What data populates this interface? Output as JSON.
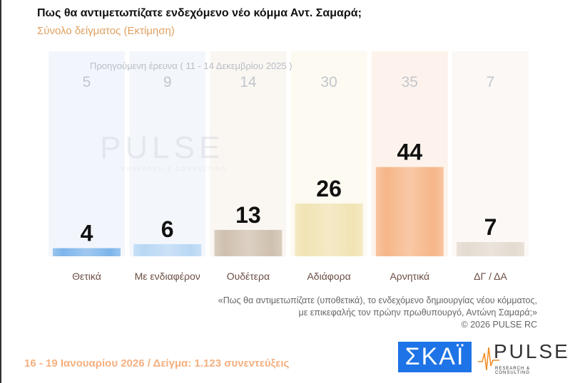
{
  "header": {
    "title": "Πως θα αντιμετωπίζατε ενδεχόμενο νέο κόμμα Αντ. Σαμαρά;",
    "subtitle": "Σύνολο δείγματος  (Εκτίμηση)"
  },
  "chart_data": {
    "type": "bar",
    "title": "Πως θα αντιμετωπίζατε ενδεχόμενο νέο κόμμα Αντ. Σαμαρά;",
    "subtitle": "Σύνολο δείγματος  (Εκτίμηση)",
    "categories": [
      "Θετικά",
      "Με ενδιαφέρον",
      "Ουδέτερα",
      "Αδιάφορα",
      "Αρνητικά",
      "ΔΓ / ΔΑ"
    ],
    "values": [
      4,
      6,
      13,
      26,
      44,
      7
    ],
    "previous_label": "Προηγούμενη έρευνα ( 11 - 14 Δεκεμβρίου 2025 )",
    "previous_values": [
      5,
      9,
      14,
      30,
      35,
      7
    ],
    "colors": [
      "#7db5ea",
      "#b9d8f4",
      "#cfc0ae",
      "#f1e3b4",
      "#f6b688",
      "#e4dbd0"
    ],
    "column_tints": [
      "#f2f6fc",
      "#f3f7fc",
      "#faf7f3",
      "#fcfaf1",
      "#fdf3ec",
      "#fbf8f5"
    ],
    "ylim": [
      0,
      100
    ],
    "grid": false
  },
  "watermark": {
    "brand": "PULSE",
    "sub": "RESEARCH & CONSULTING"
  },
  "note": {
    "line1": "«Πως θα αντιμετωπίζατε (υποθετικά), το ενδεχόμενο δημιουργίας νέου κόμματος,",
    "line2": "με επικεφαλής τον πρώην πρωθυπουργό, Αντώνη Σαμαρά;»",
    "copyright": "©  2026  PULSE RC"
  },
  "footer": {
    "text": "16 - 19 Ιανουαρίου 2026  /  Δείγμα:  1.123 συνεντεύξεις"
  },
  "logos": {
    "skai": "ΣΚΑΪ",
    "pulse": "PULSE",
    "pulse_sub": "RESEARCH & CONSULTING"
  }
}
